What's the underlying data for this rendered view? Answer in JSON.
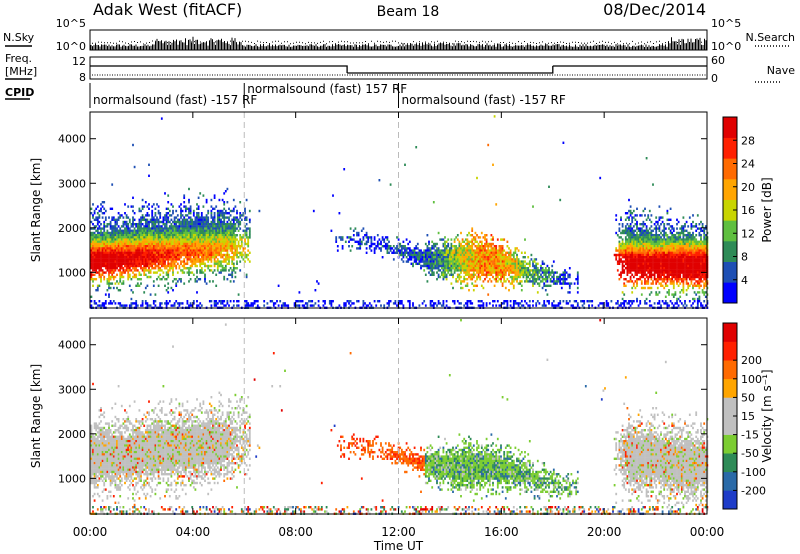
{
  "header": {
    "station": "Adak West (fitACF)",
    "beam": "Beam 18",
    "date": "08/Dec/2014"
  },
  "panel_labels": {
    "nsky": "N.Sky",
    "nsearch": "N.Search",
    "freq_line1": "Freq.",
    "freq_line2": "[MHz]",
    "nave": "Nave",
    "cpid": "CPID"
  },
  "colors": {
    "power_scale": [
      "#0000ff",
      "#1e4fb4",
      "#2e8b57",
      "#5fbf3f",
      "#c8d400",
      "#ffa500",
      "#ff6a00",
      "#ff2000",
      "#e00000"
    ],
    "velocity_scale": [
      "#1e3cc8",
      "#2a6aa8",
      "#2e8b57",
      "#7ccd32",
      "#c0c0c0",
      "#c0c0c0",
      "#ffa500",
      "#ff6a00",
      "#ff2000",
      "#e00000"
    ]
  },
  "chart_data": [
    {
      "type": "line",
      "name_ref": "noise-panel",
      "ylabel_left": "N.Sky",
      "ylabel_right": "N.Search",
      "yticks_left": [
        "10^5",
        "10^0"
      ],
      "yticks_right": [
        "10^5",
        "10^0"
      ]
    },
    {
      "type": "line",
      "name_ref": "frequency-panel",
      "ylabel_left": "Freq. [MHz]",
      "ylabel_right": "Nave",
      "yticks_left": [
        "12",
        "8"
      ],
      "yticks_right": [
        "60",
        "0"
      ],
      "freq_segments": [
        {
          "start_h": 0,
          "end_h": 10,
          "level": "high"
        },
        {
          "start_h": 10,
          "end_h": 18,
          "level": "low"
        },
        {
          "start_h": 18,
          "end_h": 24,
          "level": "high"
        }
      ]
    },
    {
      "type": "table",
      "name_ref": "cpid-row",
      "segments": [
        {
          "start_h": 0,
          "text": "normalsound (fast) -157 RF"
        },
        {
          "start_h": 6,
          "text": "normalsound (fast) 157 RF"
        },
        {
          "start_h": 12,
          "text": "normalsound (fast) -157 RF"
        }
      ]
    },
    {
      "type": "heatmap",
      "name_ref": "power-panel",
      "ylabel": "Slant Range [km]",
      "ylim": [
        200,
        4600
      ],
      "yticks": [
        1000,
        2000,
        3000,
        4000
      ],
      "colorbar_label": "Power [dB]",
      "colorbar_ticks": [
        4,
        8,
        12,
        16,
        20,
        24,
        28
      ],
      "colorbar_range": [
        0,
        32
      ]
    },
    {
      "type": "heatmap",
      "name_ref": "velocity-panel",
      "ylabel": "Slant Range [km]",
      "ylim": [
        200,
        4600
      ],
      "yticks": [
        1000,
        2000,
        3000,
        4000
      ],
      "colorbar_label": "Velocity [m s⁻¹]",
      "colorbar_ticks": [
        -200,
        -100,
        -50,
        -15,
        15,
        50,
        100,
        200
      ],
      "colorbar_tick_labels": [
        "-200",
        "-100",
        "-50",
        "-15",
        "15",
        "50",
        "100",
        "200"
      ]
    }
  ],
  "x_axis": {
    "label": "Time UT",
    "xlim_hours": [
      0,
      24
    ],
    "tick_labels": [
      "00:00",
      "04:00",
      "08:00",
      "12:00",
      "16:00",
      "20:00",
      "00:00"
    ],
    "tick_hours": [
      0,
      4,
      8,
      12,
      16,
      20,
      24
    ]
  }
}
